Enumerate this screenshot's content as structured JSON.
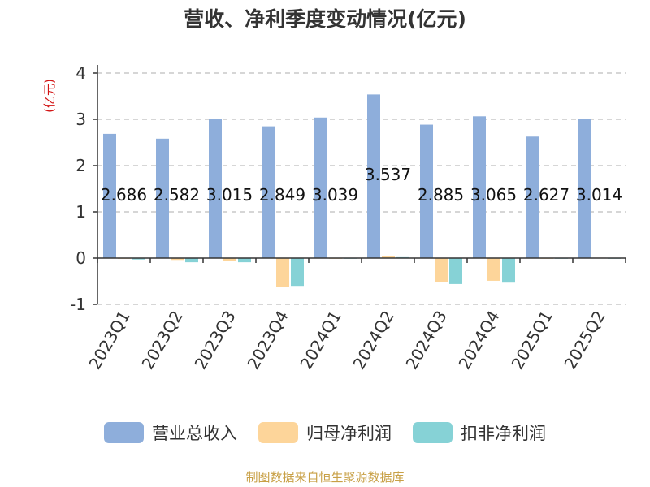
{
  "title": "营收、净利季度变动情况(亿元)",
  "source": "制图数据来自恒生聚源数据库",
  "chart_data": {
    "type": "bar",
    "title": "营收、净利季度变动情况(亿元)",
    "ylabel": "(亿元)",
    "ylim": [
      -1,
      4
    ],
    "yticks": [
      4,
      3,
      2,
      1,
      0,
      -1
    ],
    "grid": true,
    "legend_position": "bottom",
    "categories": [
      "2023Q1",
      "2023Q2",
      "2023Q3",
      "2023Q4",
      "2024Q1",
      "2024Q2",
      "2024Q3",
      "2024Q4",
      "2025Q1",
      "2025Q2"
    ],
    "series": [
      {
        "name": "营业总收入",
        "color": "#8eaedb",
        "values": [
          2.686,
          2.582,
          3.015,
          2.849,
          3.039,
          3.537,
          2.885,
          3.065,
          2.627,
          3.014
        ]
      },
      {
        "name": "归母净利润",
        "color": "#fdd59a",
        "values": [
          0.0,
          -0.04,
          -0.07,
          -0.62,
          0.0,
          0.05,
          -0.51,
          -0.49,
          0.0,
          0.01
        ]
      },
      {
        "name": "扣非净利润",
        "color": "#86d2d6",
        "values": [
          -0.03,
          -0.09,
          -0.09,
          -0.6,
          -0.01,
          0.02,
          -0.56,
          -0.53,
          -0.01,
          0.0
        ]
      }
    ],
    "data_labels": [
      "2.686",
      "2.582",
      "3.015",
      "2.849",
      "3.039",
      "3.537",
      "2.885",
      "3.065",
      "2.627",
      "3.014"
    ]
  }
}
